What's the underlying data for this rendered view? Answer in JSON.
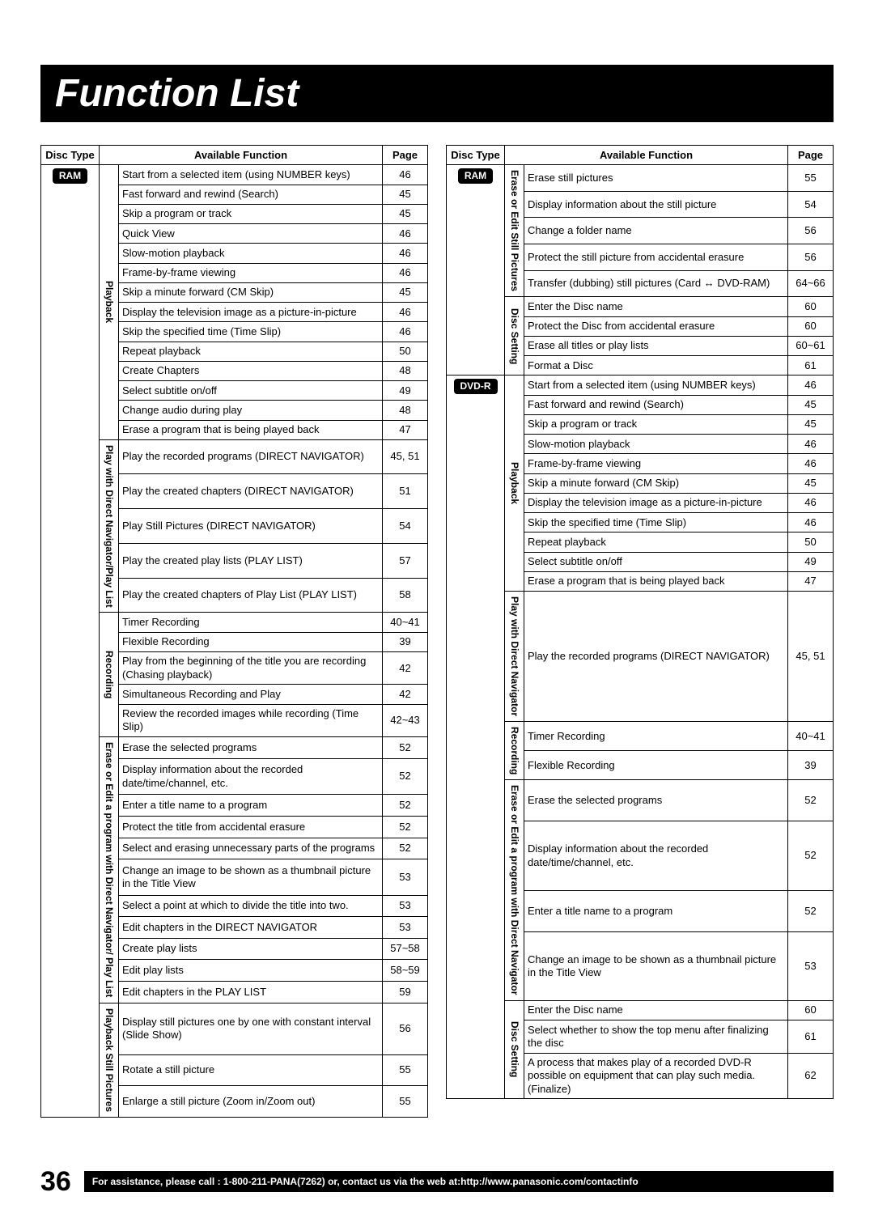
{
  "title": "Function List",
  "headers": {
    "disc_type": "Disc Type",
    "available_function": "Available Function",
    "page": "Page"
  },
  "badges": {
    "ram": "RAM",
    "dvdr": "DVD-R"
  },
  "left": {
    "disc_badge": "RAM",
    "sections": [
      {
        "label": "Playback",
        "rows": [
          [
            "Start from a selected item (using NUMBER keys)",
            "46"
          ],
          [
            "Fast forward and rewind (Search)",
            "45"
          ],
          [
            "Skip a program or track",
            "45"
          ],
          [
            "Quick View",
            "46"
          ],
          [
            "Slow-motion playback",
            "46"
          ],
          [
            "Frame-by-frame viewing",
            "46"
          ],
          [
            "Skip a minute forward (CM Skip)",
            "45"
          ],
          [
            "Display the television image as a picture-in-picture",
            "46"
          ],
          [
            "Skip the specified time (Time Slip)",
            "46"
          ],
          [
            "Repeat playback",
            "50"
          ],
          [
            "Create Chapters",
            "48"
          ],
          [
            "Select subtitle on/off",
            "49"
          ],
          [
            "Change audio during play",
            "48"
          ],
          [
            "Erase a program that is being played back",
            "47"
          ]
        ]
      },
      {
        "label": "Play with Direct Navigator/Play List",
        "rows": [
          [
            "Play the recorded programs (DIRECT NAVIGATOR)",
            "45, 51"
          ],
          [
            "Play the created chapters (DIRECT NAVIGATOR)",
            "51"
          ],
          [
            "Play Still Pictures (DIRECT NAVIGATOR)",
            "54"
          ],
          [
            "Play the created play lists (PLAY LIST)",
            "57"
          ],
          [
            "Play the created chapters of Play List (PLAY LIST)",
            "58"
          ]
        ]
      },
      {
        "label": "Recording",
        "rows": [
          [
            "Timer Recording",
            "40~41"
          ],
          [
            "Flexible Recording",
            "39"
          ],
          [
            "Play from the beginning of the title you are recording (Chasing playback)",
            "42"
          ],
          [
            "Simultaneous Recording and Play",
            "42"
          ],
          [
            "Review the recorded images while recording (Time Slip)",
            "42~43"
          ]
        ]
      },
      {
        "label": "Erase or Edit a program with Direct Navigator/ Play List",
        "rows": [
          [
            "Erase the selected programs",
            "52"
          ],
          [
            "Display information about the recorded date/time/channel, etc.",
            "52"
          ],
          [
            "Enter a title name to a program",
            "52"
          ],
          [
            "Protect the title from accidental erasure",
            "52"
          ],
          [
            "Select and erasing unnecessary parts of the programs",
            "52"
          ],
          [
            "Change an image to be shown as a thumbnail picture in the Title View",
            "53"
          ],
          [
            "Select a point at which to divide the title into two.",
            "53"
          ],
          [
            "Edit chapters in the DIRECT NAVIGATOR",
            "53"
          ],
          [
            "Create play lists",
            "57~58"
          ],
          [
            "Edit play lists",
            "58~59"
          ],
          [
            "Edit chapters in the PLAY LIST",
            "59"
          ]
        ]
      },
      {
        "label": "Playback Still Pictures",
        "rows": [
          [
            "Display still pictures one by one with constant interval (Slide Show)",
            "56"
          ],
          [
            "Rotate a still picture",
            "55"
          ],
          [
            "Enlarge a still picture (Zoom in/Zoom out)",
            "55"
          ]
        ]
      }
    ]
  },
  "right": {
    "groups": [
      {
        "disc_badge": "RAM",
        "sections": [
          {
            "label": "Erase or Edit Still Pictures",
            "rows": [
              [
                "Erase still pictures",
                "55"
              ],
              [
                "Display information about the still picture",
                "54"
              ],
              [
                "Change a folder name",
                "56"
              ],
              [
                "Protect the still picture from accidental erasure",
                "56"
              ],
              [
                "Transfer (dubbing) still pictures (Card ↔ DVD-RAM)",
                "64~66"
              ]
            ]
          },
          {
            "label": "Disc Setting",
            "rows": [
              [
                "Enter the Disc name",
                "60"
              ],
              [
                "Protect the Disc from accidental erasure",
                "60"
              ],
              [
                "Erase all titles or play lists",
                "60~61"
              ],
              [
                "Format a Disc",
                "61"
              ]
            ]
          }
        ]
      },
      {
        "disc_badge": "DVD-R",
        "sections": [
          {
            "label": "Playback",
            "rows": [
              [
                "Start from a selected item (using NUMBER keys)",
                "46"
              ],
              [
                "Fast forward and rewind (Search)",
                "45"
              ],
              [
                "Skip a program or track",
                "45"
              ],
              [
                "Slow-motion playback",
                "46"
              ],
              [
                "Frame-by-frame viewing",
                "46"
              ],
              [
                "Skip a minute forward (CM Skip)",
                "45"
              ],
              [
                "Display the television image as a picture-in-picture",
                "46"
              ],
              [
                "Skip the specified time (Time Slip)",
                "46"
              ],
              [
                "Repeat playback",
                "50"
              ],
              [
                "Select subtitle on/off",
                "49"
              ],
              [
                "Erase a program that is being played back",
                "47"
              ]
            ]
          },
          {
            "label": "Play with Direct Navigator",
            "rows": [
              [
                "Play the recorded programs (DIRECT NAVIGATOR)",
                "45, 51"
              ]
            ]
          },
          {
            "label": "Recording",
            "rows": [
              [
                "Timer Recording",
                "40~41"
              ],
              [
                "Flexible Recording",
                "39"
              ]
            ]
          },
          {
            "label": "Erase or Edit a program with Direct Navigator",
            "rows": [
              [
                "Erase the selected programs",
                "52"
              ],
              [
                "Display information about the recorded date/time/channel, etc.",
                "52"
              ],
              [
                "Enter a title name to a program",
                "52"
              ],
              [
                "Change an image to be shown as a thumbnail picture in the Title View",
                "53"
              ]
            ]
          },
          {
            "label": "Disc Setting",
            "rows": [
              [
                "Enter the Disc name",
                "60"
              ],
              [
                "Select whether to show the top menu after finalizing the disc",
                "61"
              ],
              [
                "A process that makes play of a recorded DVD-R possible on equipment that can play such media. (Finalize)",
                "62"
              ]
            ]
          }
        ]
      }
    ]
  },
  "footer": {
    "page_number": "36",
    "text": "For assistance, please call : 1-800-211-PANA(7262) or, contact us via the web at:http://www.panasonic.com/contactinfo"
  }
}
